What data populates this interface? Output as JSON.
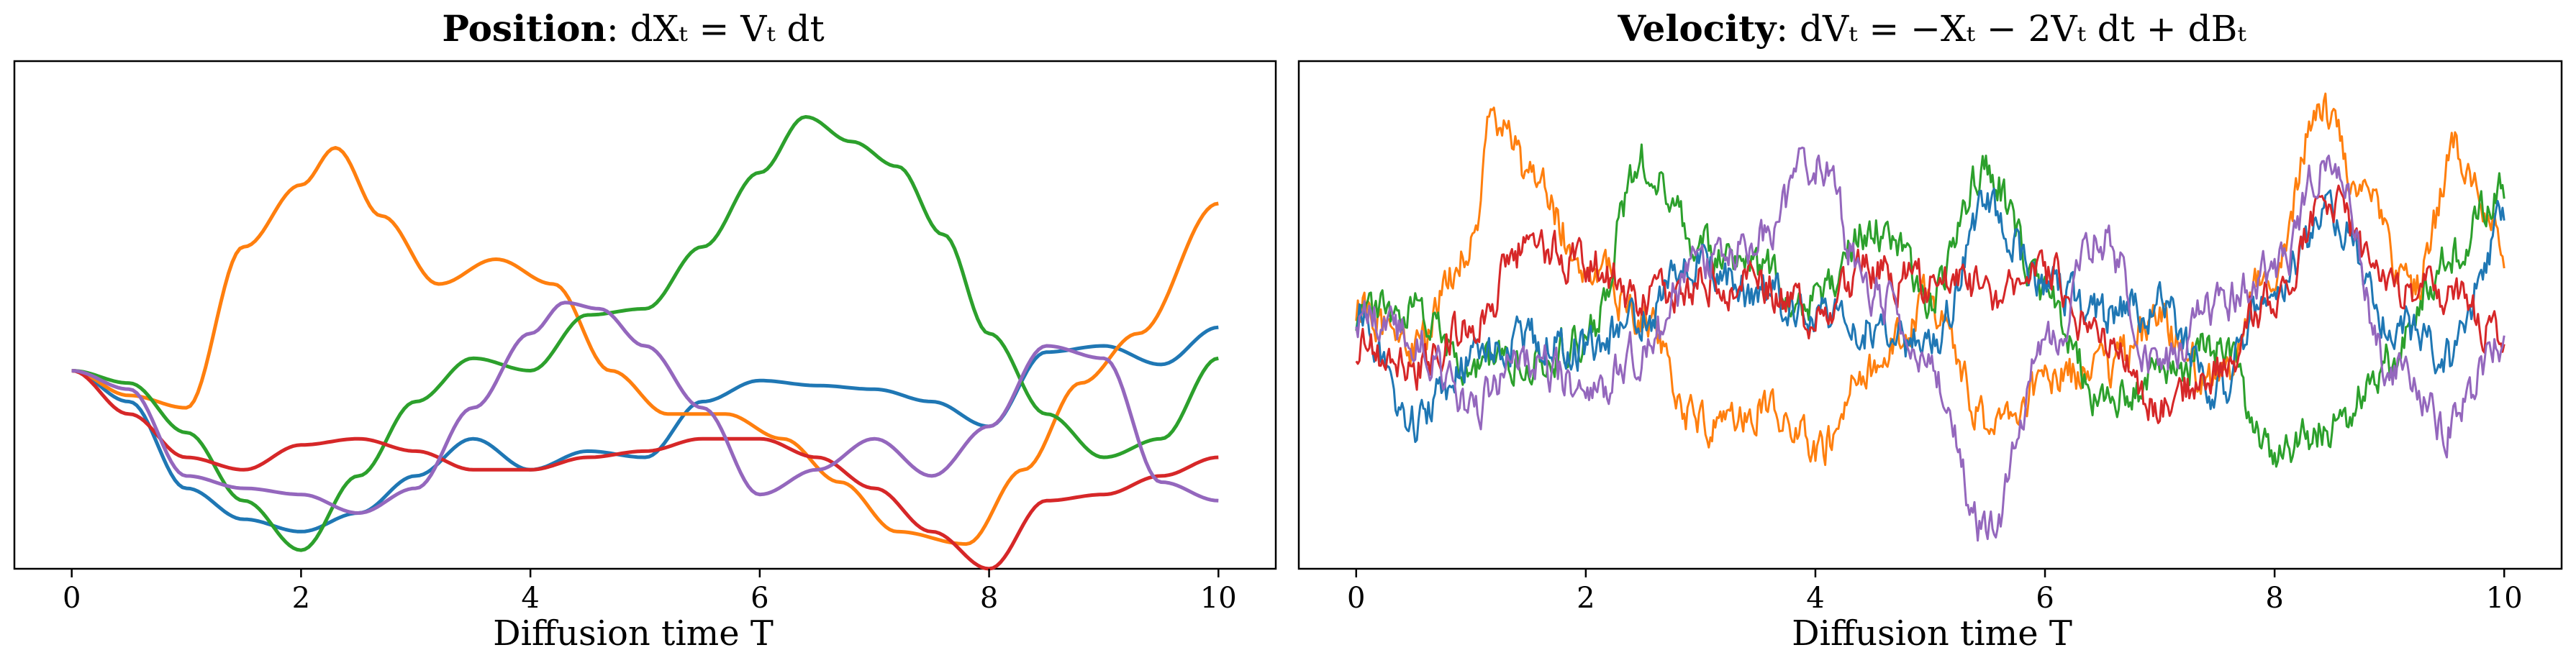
{
  "chart_data": [
    {
      "type": "line",
      "title_bold": "Position",
      "title_rest": ":  dXₜ = Vₜ dt",
      "xlabel": "Diffusion time T",
      "ylabel": "",
      "xlim": [
        -0.5,
        10.5
      ],
      "ylim": [
        -1.6,
        2.5
      ],
      "xticks": [
        "0",
        "2",
        "4",
        "6",
        "8",
        "10"
      ],
      "series": [
        {
          "name": "blue",
          "color": "#1f77b4",
          "x": [
            0,
            0.5,
            1,
            1.5,
            2,
            2.5,
            3,
            3.5,
            4,
            4.5,
            5,
            5.5,
            6,
            6.5,
            7,
            7.5,
            8,
            8.5,
            9,
            9.5,
            10
          ],
          "y": [
            0,
            -0.25,
            -0.95,
            -1.2,
            -1.3,
            -1.15,
            -0.85,
            -0.55,
            -0.8,
            -0.65,
            -0.7,
            -0.25,
            -0.08,
            -0.12,
            -0.15,
            -0.25,
            -0.45,
            0.15,
            0.2,
            0.05,
            0.35
          ]
        },
        {
          "name": "orange",
          "color": "#ff7f0e",
          "x": [
            0,
            0.5,
            1,
            1.5,
            2,
            2.3,
            2.7,
            3.2,
            3.7,
            4.2,
            4.7,
            5.2,
            5.7,
            6.2,
            6.7,
            7.2,
            7.8,
            8.3,
            8.8,
            9.3,
            10
          ],
          "y": [
            0,
            -0.2,
            -0.3,
            1.0,
            1.5,
            1.8,
            1.25,
            0.7,
            0.9,
            0.7,
            0.0,
            -0.35,
            -0.35,
            -0.55,
            -0.9,
            -1.3,
            -1.4,
            -0.8,
            -0.1,
            0.3,
            1.35
          ]
        },
        {
          "name": "green",
          "color": "#2ca02c",
          "x": [
            0,
            0.5,
            1,
            1.5,
            2,
            2.5,
            3,
            3.5,
            4,
            4.5,
            5,
            5.5,
            6,
            6.4,
            6.8,
            7.2,
            7.6,
            8,
            8.5,
            9,
            9.5,
            10
          ],
          "y": [
            0,
            -0.1,
            -0.5,
            -1.05,
            -1.45,
            -0.85,
            -0.25,
            0.1,
            0.0,
            0.45,
            0.5,
            1.0,
            1.6,
            2.05,
            1.85,
            1.65,
            1.1,
            0.3,
            -0.35,
            -0.7,
            -0.55,
            0.1
          ]
        },
        {
          "name": "red",
          "color": "#d62728",
          "x": [
            0,
            0.5,
            1,
            1.5,
            2,
            2.5,
            3,
            3.5,
            4,
            4.5,
            5,
            5.5,
            6,
            6.5,
            7,
            7.5,
            8,
            8.5,
            9,
            9.5,
            10
          ],
          "y": [
            0,
            -0.35,
            -0.7,
            -0.8,
            -0.6,
            -0.55,
            -0.65,
            -0.8,
            -0.8,
            -0.7,
            -0.65,
            -0.55,
            -0.55,
            -0.7,
            -0.95,
            -1.3,
            -1.6,
            -1.05,
            -1.0,
            -0.85,
            -0.7
          ]
        },
        {
          "name": "purple",
          "color": "#9467bd",
          "x": [
            0,
            0.5,
            1,
            1.5,
            2,
            2.5,
            3,
            3.5,
            4,
            4.3,
            4.6,
            5,
            5.5,
            6,
            6.5,
            7,
            7.5,
            8,
            8.5,
            9,
            9.5,
            10
          ],
          "y": [
            0,
            -0.15,
            -0.85,
            -0.95,
            -1.0,
            -1.15,
            -0.95,
            -0.3,
            0.3,
            0.55,
            0.5,
            0.2,
            -0.3,
            -1.0,
            -0.8,
            -0.55,
            -0.85,
            -0.45,
            0.2,
            0.1,
            -0.9,
            -1.05
          ]
        }
      ]
    },
    {
      "type": "line",
      "title_bold": "Velocity",
      "title_rest": ":  dVₜ = −Xₜ − 2Vₜ dt + dBₜ",
      "xlabel": "Diffusion time T",
      "ylabel": "",
      "xlim": [
        -0.5,
        10.5
      ],
      "ylim": [
        -2.3,
        2.3
      ],
      "xticks": [
        "0",
        "2",
        "4",
        "6",
        "8",
        "10"
      ],
      "series": [
        {
          "name": "orange",
          "color": "#ff7f0e",
          "x": [
            0,
            0.5,
            1,
            1.2,
            1.5,
            2,
            2.5,
            3,
            3.5,
            4,
            4.5,
            5,
            5.5,
            6,
            6.5,
            7,
            7.5,
            8,
            8.4,
            8.8,
            9.2,
            9.6,
            10
          ],
          "y": [
            0.1,
            -0.3,
            0.6,
            1.8,
            1.3,
            0.5,
            0.0,
            -1.0,
            -0.8,
            -1.2,
            -0.5,
            0.1,
            -1.0,
            -0.6,
            -0.5,
            -0.1,
            -0.6,
            0.5,
            1.9,
            1.0,
            0.2,
            1.5,
            0.6
          ]
        },
        {
          "name": "green",
          "color": "#2ca02c",
          "x": [
            0,
            0.5,
            1,
            1.5,
            2,
            2.5,
            3,
            3.5,
            4,
            4.5,
            5,
            5.5,
            6,
            6.5,
            7,
            7.5,
            8,
            8.5,
            9,
            9.5,
            10
          ],
          "y": [
            0.0,
            0.0,
            -0.5,
            -0.4,
            -0.2,
            1.4,
            0.6,
            0.4,
            0.1,
            0.8,
            0.2,
            1.3,
            0.2,
            -0.8,
            -0.6,
            -0.3,
            -1.3,
            -1.0,
            -0.4,
            0.5,
            1.1
          ]
        },
        {
          "name": "blue",
          "color": "#1f77b4",
          "x": [
            0,
            0.5,
            1,
            1.5,
            2,
            2.5,
            3,
            3.5,
            4,
            4.5,
            5,
            5.5,
            6,
            6.5,
            7,
            7.5,
            8,
            8.5,
            9,
            9.5,
            10
          ],
          "y": [
            0.0,
            -1.0,
            -0.4,
            -0.2,
            -0.3,
            0.0,
            0.5,
            0.2,
            0.0,
            -0.1,
            -0.3,
            1.0,
            0.3,
            0.0,
            0.1,
            -0.7,
            0.3,
            0.9,
            0.0,
            -0.4,
            0.8
          ]
        },
        {
          "name": "red",
          "color": "#d62728",
          "x": [
            0,
            0.5,
            1,
            1.5,
            2,
            2.5,
            3,
            3.5,
            4,
            4.5,
            5,
            5.5,
            6,
            6.5,
            7,
            7.5,
            8,
            8.5,
            9,
            9.5,
            10
          ],
          "y": [
            -0.3,
            -0.5,
            -0.1,
            0.6,
            0.5,
            0.1,
            0.3,
            0.3,
            0.0,
            0.4,
            0.3,
            0.2,
            0.4,
            -0.3,
            -0.8,
            -0.5,
            0.2,
            1.0,
            0.2,
            0.2,
            -0.2
          ]
        },
        {
          "name": "purple",
          "color": "#9467bd",
          "x": [
            0,
            0.5,
            1,
            1.5,
            2,
            2.5,
            3,
            3.5,
            4,
            4.5,
            5,
            5.5,
            6,
            6.5,
            7,
            7.5,
            8,
            8.5,
            9,
            9.5,
            10
          ],
          "y": [
            0.0,
            -0.2,
            -0.8,
            -0.4,
            -0.7,
            -0.3,
            0.5,
            0.7,
            1.4,
            0.2,
            -0.5,
            -2.0,
            -0.3,
            0.7,
            -0.5,
            0.1,
            0.4,
            1.5,
            -0.5,
            -1.0,
            -0.2
          ]
        }
      ]
    }
  ]
}
